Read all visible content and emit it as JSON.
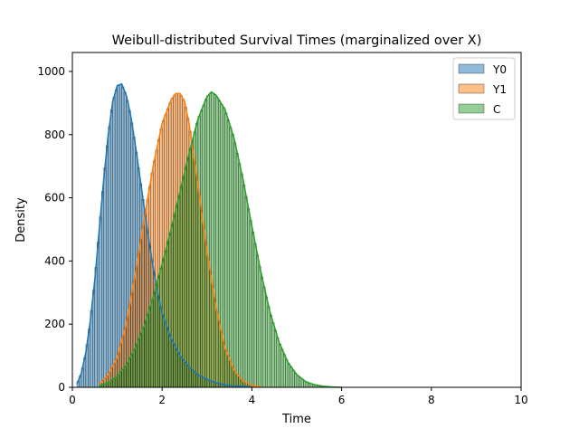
{
  "chart_data": {
    "type": "histogram",
    "title": "Weibull-distributed Survival Times (marginalized over X)",
    "xlabel": "Time",
    "ylabel": "Density",
    "xlim": [
      0,
      10
    ],
    "ylim": [
      0,
      1060
    ],
    "x_ticks": [
      0,
      2,
      4,
      6,
      8,
      10
    ],
    "y_ticks": [
      0,
      200,
      400,
      600,
      800,
      1000
    ],
    "grid": false,
    "legend_position": "top-right",
    "bin_width": 0.05,
    "series": [
      {
        "name": "Y0",
        "color": "#1f77b4",
        "kde": {
          "x": [
            0.1,
            0.2,
            0.3,
            0.4,
            0.5,
            0.6,
            0.7,
            0.8,
            0.9,
            1.0,
            1.1,
            1.2,
            1.3,
            1.4,
            1.5,
            1.6,
            1.7,
            1.8,
            1.9,
            2.0,
            2.2,
            2.4,
            2.6,
            2.8,
            3.0,
            3.2,
            3.4,
            3.6,
            3.8,
            4.0
          ],
          "y": [
            10,
            45,
            110,
            210,
            340,
            500,
            660,
            800,
            905,
            955,
            960,
            925,
            860,
            770,
            670,
            570,
            470,
            380,
            300,
            235,
            155,
            100,
            65,
            40,
            25,
            15,
            8,
            5,
            3,
            1
          ]
        }
      },
      {
        "name": "Y1",
        "color": "#ff7f0e",
        "kde": {
          "x": [
            0.6,
            0.8,
            1.0,
            1.2,
            1.4,
            1.6,
            1.8,
            2.0,
            2.2,
            2.3,
            2.4,
            2.5,
            2.6,
            2.8,
            3.0,
            3.2,
            3.4,
            3.6,
            3.8,
            4.0,
            4.2
          ],
          "y": [
            10,
            40,
            95,
            200,
            355,
            530,
            700,
            835,
            910,
            930,
            930,
            905,
            835,
            640,
            430,
            255,
            125,
            55,
            20,
            6,
            2
          ]
        }
      },
      {
        "name": "C",
        "color": "#2ca02c",
        "kde": {
          "x": [
            0.6,
            0.8,
            1.0,
            1.2,
            1.4,
            1.6,
            1.8,
            2.0,
            2.2,
            2.4,
            2.6,
            2.8,
            3.0,
            3.1,
            3.2,
            3.4,
            3.6,
            3.8,
            4.0,
            4.2,
            4.4,
            4.6,
            4.8,
            5.0,
            5.2,
            5.4,
            5.6,
            5.8,
            6.0
          ],
          "y": [
            5,
            15,
            35,
            70,
            125,
            195,
            285,
            390,
            500,
            620,
            740,
            850,
            920,
            935,
            925,
            880,
            790,
            660,
            510,
            365,
            240,
            145,
            80,
            40,
            18,
            8,
            3,
            1,
            0
          ]
        }
      }
    ]
  }
}
